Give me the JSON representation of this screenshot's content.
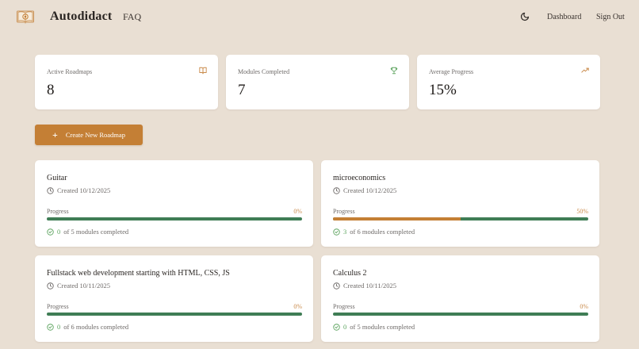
{
  "header": {
    "brand": "Autodidact",
    "faq": "FAQ",
    "theme_icon": "moon-icon",
    "nav": {
      "dashboard": "Dashboard",
      "sign_out": "Sign Out"
    }
  },
  "stats": [
    {
      "label": "Active Roadmaps",
      "value": "8",
      "icon": "book-open-icon",
      "icon_color": "#c98a4a"
    },
    {
      "label": "Modules Completed",
      "value": "7",
      "icon": "trophy-icon",
      "icon_color": "#5da45f"
    },
    {
      "label": "Average Progress",
      "value": "15%",
      "icon": "trending-up-icon",
      "icon_color": "#c98a4a"
    }
  ],
  "create_button": {
    "label": "Create New Roadmap",
    "icon": "plus-icon"
  },
  "roadmaps": [
    {
      "title": "Guitar",
      "created": "Created 10/12/2025",
      "progress_label": "Progress",
      "progress_pct": "0%",
      "progress_value": 0,
      "completed": "0",
      "modules_text": "of 5 modules completed"
    },
    {
      "title": "microeconomics",
      "created": "Created 10/12/2025",
      "progress_label": "Progress",
      "progress_pct": "50%",
      "progress_value": 50,
      "completed": "3",
      "modules_text": "of 6 modules completed"
    },
    {
      "title": "Fullstack web development starting with HTML, CSS, JS",
      "created": "Created 10/11/2025",
      "progress_label": "Progress",
      "progress_pct": "0%",
      "progress_value": 0,
      "completed": "0",
      "modules_text": "of 6 modules completed"
    },
    {
      "title": "Calculus 2",
      "created": "Created 10/11/2025",
      "progress_label": "Progress",
      "progress_pct": "0%",
      "progress_value": 0,
      "completed": "0",
      "modules_text": "of 5 modules completed"
    }
  ],
  "colors": {
    "background": "#e9dfd3",
    "accent": "#c47f35",
    "progress_track": "#3f7d55",
    "success": "#5da45f"
  }
}
